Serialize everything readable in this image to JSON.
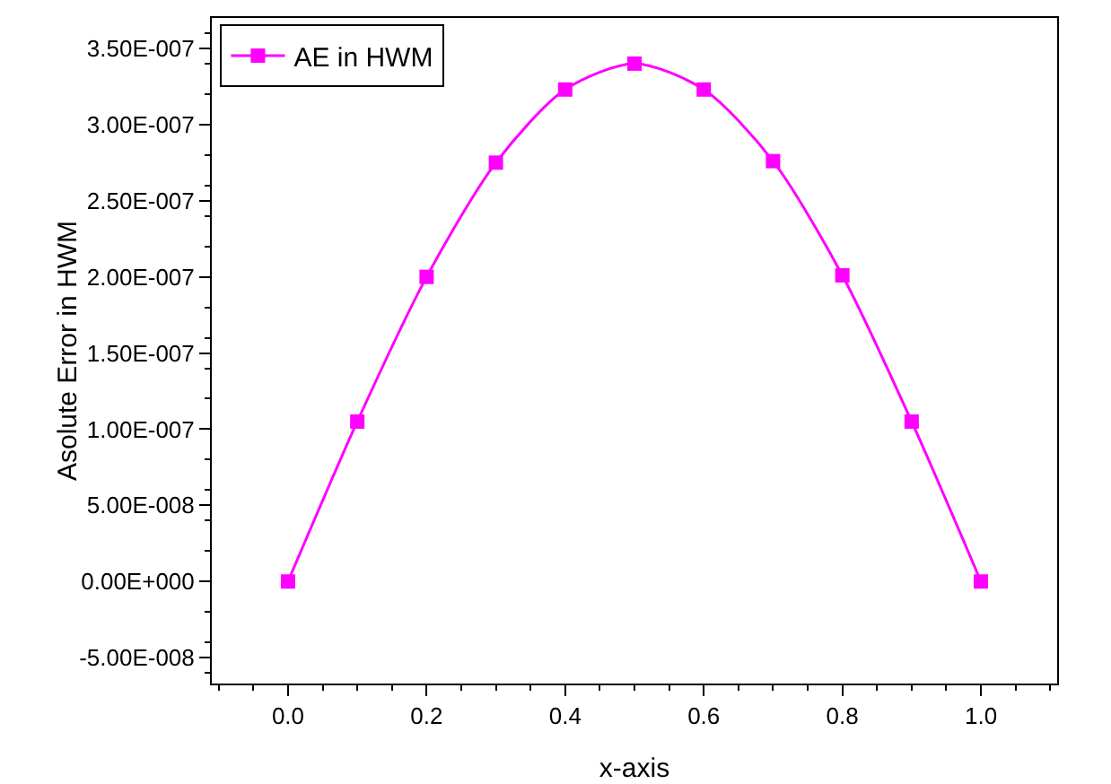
{
  "chart_data": {
    "type": "line",
    "xlabel": "x-axis",
    "ylabel": "Asolute Error in HWM",
    "x": [
      0,
      0.1,
      0.2,
      0.3,
      0.4,
      0.5,
      0.6,
      0.7,
      0.8,
      0.9,
      1.0
    ],
    "series": [
      {
        "name": "AE in HWM",
        "color": "#ff00ff",
        "values": [
          0,
          1.05e-07,
          2e-07,
          2.75e-07,
          3.23e-07,
          3.4e-07,
          3.23e-07,
          2.76e-07,
          2.01e-07,
          1.05e-07,
          0
        ]
      }
    ],
    "xlim": [
      -0.11,
      1.11
    ],
    "xticks": [
      {
        "value": 0,
        "label": "0.0"
      },
      {
        "value": 0.2,
        "label": "0.2"
      },
      {
        "value": 0.4,
        "label": "0.4"
      },
      {
        "value": 0.6,
        "label": "0.6"
      },
      {
        "value": 0.8,
        "label": "0.8"
      },
      {
        "value": 1.0,
        "label": "1.0"
      }
    ],
    "ylim": [
      -6.7e-08,
      3.7e-07
    ],
    "yticks": [
      {
        "value": -5e-08,
        "label": "-5.00E-008"
      },
      {
        "value": 0,
        "label": "0.00E+000"
      },
      {
        "value": 5e-08,
        "label": "5.00E-008"
      },
      {
        "value": 1e-07,
        "label": "1.00E-007"
      },
      {
        "value": 1.5e-07,
        "label": "1.50E-007"
      },
      {
        "value": 2e-07,
        "label": "2.00E-007"
      },
      {
        "value": 2.5e-07,
        "label": "2.50E-007"
      },
      {
        "value": 3e-07,
        "label": "3.00E-007"
      },
      {
        "value": 3.5e-07,
        "label": "3.50E-007"
      }
    ],
    "grid": false,
    "legend": "top left",
    "marker": "square",
    "line_style": "solid"
  }
}
